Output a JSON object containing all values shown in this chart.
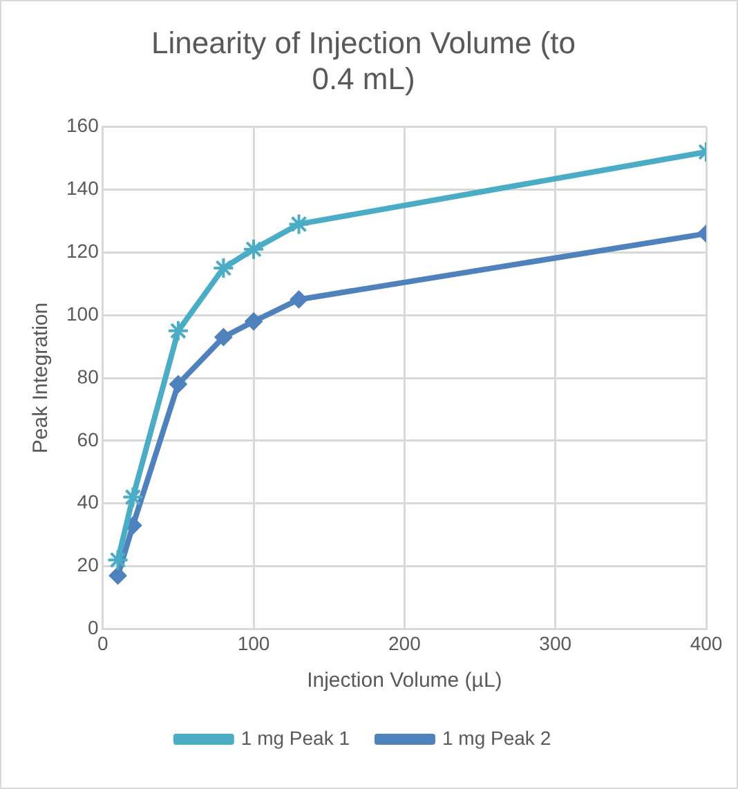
{
  "chart_data": {
    "type": "line",
    "title": "Linearity of Injection Volume (to 0.4 mL)",
    "xlabel": "Injection Volume (µL)",
    "ylabel": "Peak Integration",
    "x": [
      10,
      20,
      50,
      80,
      100,
      130,
      400
    ],
    "series": [
      {
        "name": "1 mg Peak 1",
        "color": "#4bacc6",
        "marker": "cross",
        "values": [
          22,
          42,
          95,
          115,
          121,
          129,
          152
        ]
      },
      {
        "name": "1 mg Peak 2",
        "color": "#4f81bd",
        "marker": "diamond",
        "values": [
          17,
          33,
          78,
          93,
          98,
          105,
          126
        ]
      }
    ],
    "xlim": [
      0,
      400
    ],
    "xticks": [
      0,
      100,
      200,
      300,
      400
    ],
    "ylim": [
      0,
      160
    ],
    "yticks": [
      0,
      20,
      40,
      60,
      80,
      100,
      120,
      140,
      160
    ],
    "grid": true,
    "legend": "bottom",
    "line_style": "solid"
  }
}
